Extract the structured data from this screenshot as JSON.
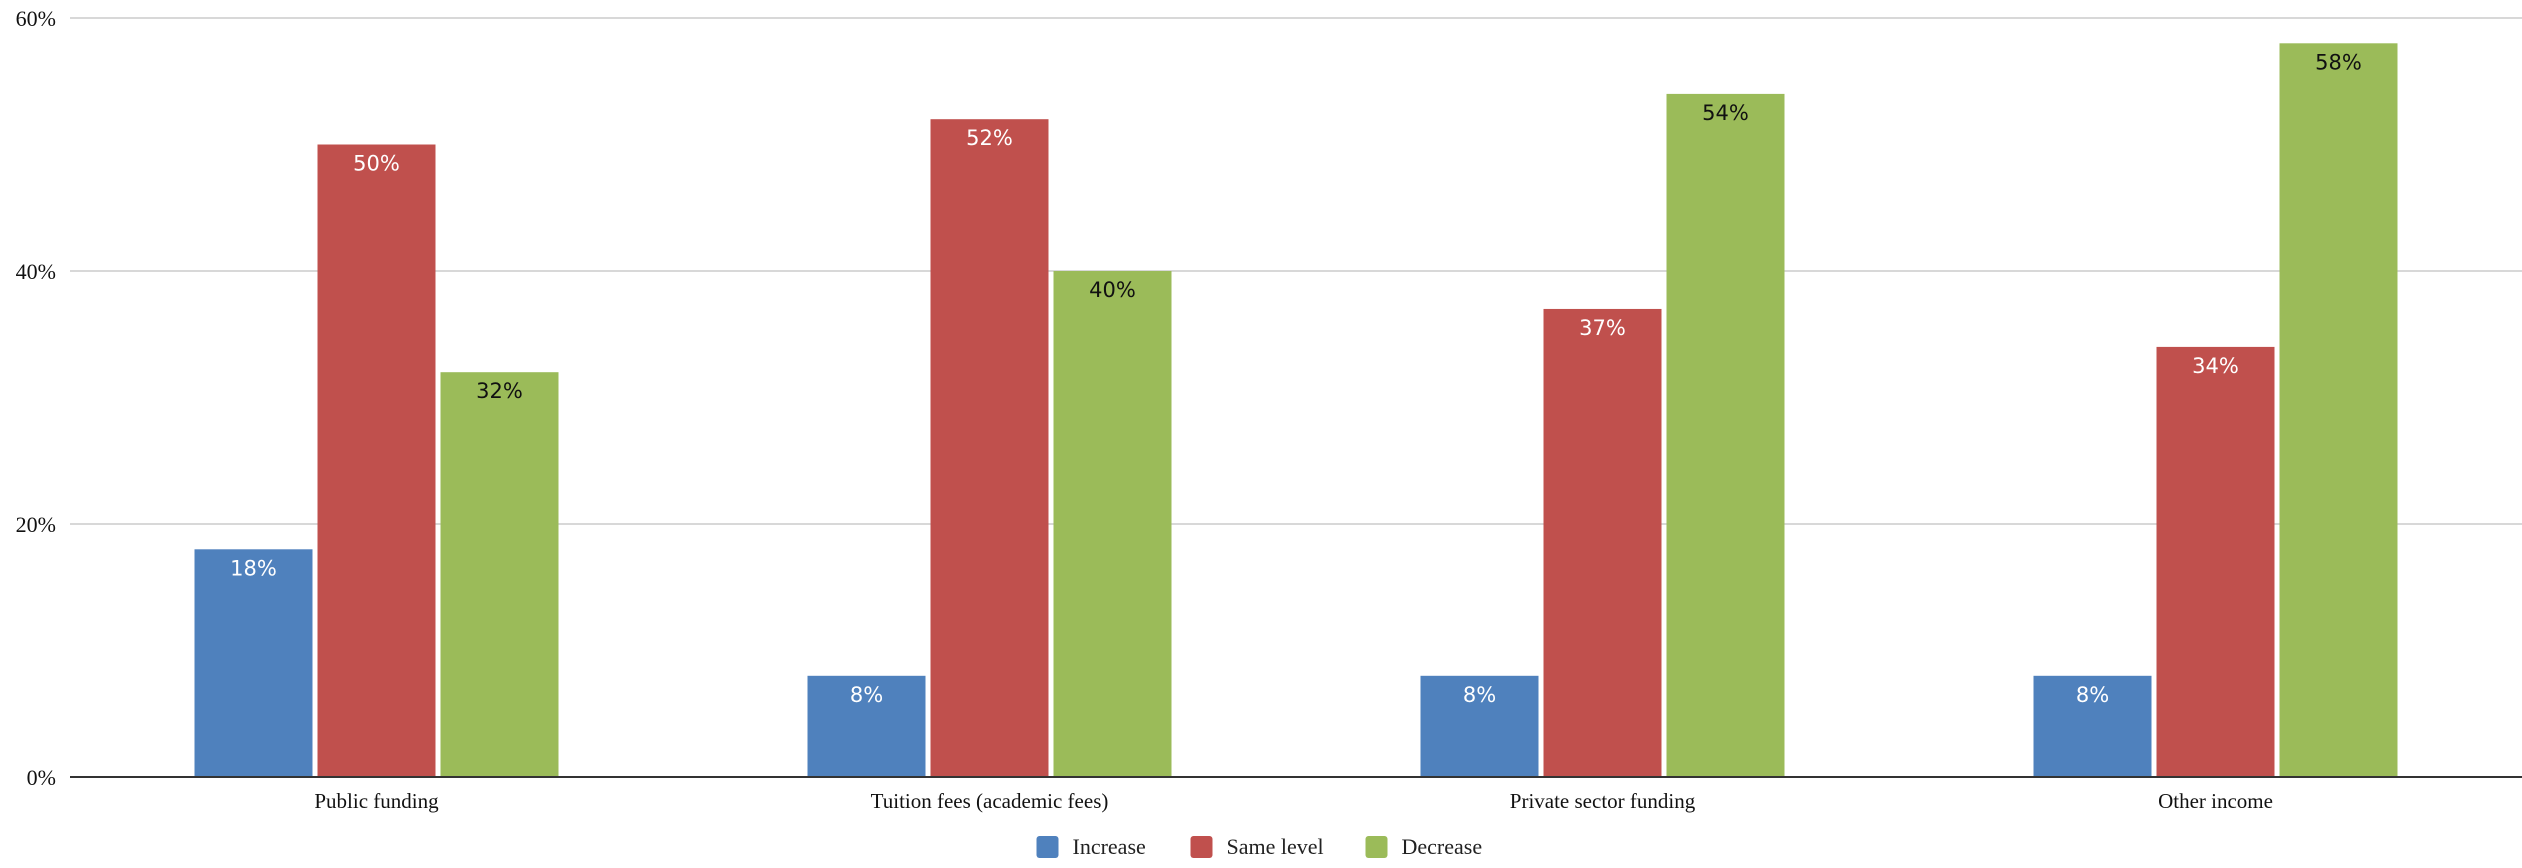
{
  "chart_data": {
    "type": "bar",
    "title": "",
    "xlabel": "",
    "ylabel": "",
    "ylim": [
      0,
      60
    ],
    "yticks": [
      0,
      20,
      40,
      60
    ],
    "ytick_labels": [
      "0%",
      "20%",
      "40%",
      "60%"
    ],
    "grid": true,
    "legend_position": "bottom",
    "categories": [
      "Public funding",
      "Tuition fees (academic fees)",
      "Private sector funding",
      "Other income"
    ],
    "series": [
      {
        "name": "Increase",
        "color": "#4f81bd",
        "label_color": "#ffffff",
        "values": [
          18,
          8,
          8,
          8
        ],
        "labels": [
          "18%",
          "8%",
          "8%",
          "8%"
        ]
      },
      {
        "name": "Same level",
        "color": "#c0504d",
        "label_color": "#ffffff",
        "values": [
          50,
          52,
          37,
          34
        ],
        "labels": [
          "50%",
          "52%",
          "37%",
          "34%"
        ]
      },
      {
        "name": "Decrease",
        "color": "#9bbb59",
        "label_color": "#111111",
        "values": [
          32,
          40,
          54,
          58
        ],
        "labels": [
          "32%",
          "40%",
          "54%",
          "58%"
        ]
      }
    ]
  }
}
